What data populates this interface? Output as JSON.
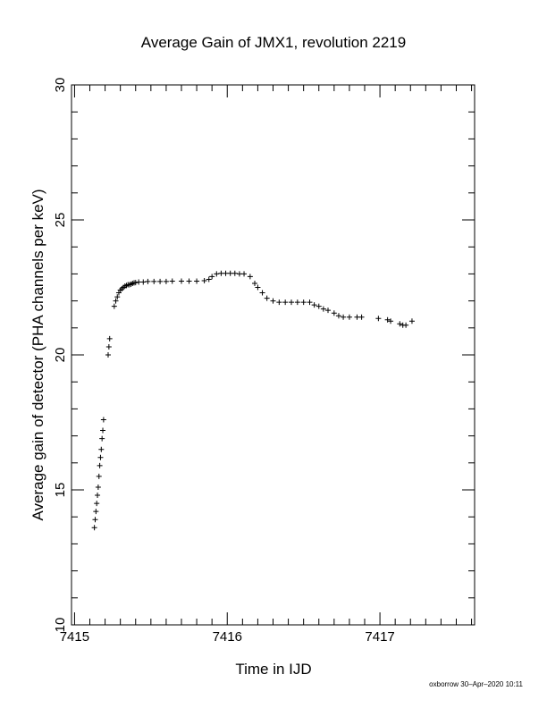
{
  "chart_data": {
    "type": "scatter",
    "title": "Average Gain of JMX1, revolution 2219",
    "xlabel": "Time in IJD",
    "ylabel": "Average gain of detector (PHA channels per keV)",
    "xlim": [
      7414.98,
      7417.62
    ],
    "ylim": [
      10,
      30
    ],
    "x_ticks": [
      7415,
      7416,
      7417
    ],
    "y_ticks": [
      10,
      15,
      20,
      25,
      30
    ],
    "x_tick_labels": [
      "7415",
      "7416",
      "7417"
    ],
    "y_tick_labels": [
      "10",
      "15",
      "20",
      "25",
      "30"
    ],
    "grid": false,
    "legend": "none",
    "marker": "plus",
    "marker_color": "#000000",
    "x": [
      7415.13,
      7415.135,
      7415.14,
      7415.145,
      7415.15,
      7415.155,
      7415.16,
      7415.165,
      7415.17,
      7415.175,
      7415.18,
      7415.185,
      7415.19,
      7415.22,
      7415.225,
      7415.23,
      7415.26,
      7415.27,
      7415.28,
      7415.29,
      7415.3,
      7415.31,
      7415.32,
      7415.33,
      7415.34,
      7415.35,
      7415.36,
      7415.37,
      7415.38,
      7415.39,
      7415.4,
      7415.42,
      7415.45,
      7415.48,
      7415.52,
      7415.56,
      7415.6,
      7415.64,
      7415.7,
      7415.75,
      7415.8,
      7415.85,
      7415.88,
      7415.9,
      7415.93,
      7415.96,
      7415.99,
      7416.02,
      7416.05,
      7416.08,
      7416.11,
      7416.15,
      7416.18,
      7416.2,
      7416.23,
      7416.26,
      7416.3,
      7416.34,
      7416.38,
      7416.42,
      7416.46,
      7416.5,
      7416.54,
      7416.57,
      7416.6,
      7416.63,
      7416.66,
      7416.7,
      7416.73,
      7416.76,
      7416.8,
      7416.85,
      7416.88,
      7416.99,
      7417.05,
      7417.07,
      7417.13,
      7417.15,
      7417.17,
      7417.21
    ],
    "y": [
      13.6,
      13.9,
      14.2,
      14.5,
      14.8,
      15.1,
      15.5,
      15.9,
      16.2,
      16.5,
      16.9,
      17.2,
      17.6,
      20.0,
      20.3,
      20.6,
      21.8,
      22.0,
      22.15,
      22.3,
      22.4,
      22.45,
      22.5,
      22.55,
      22.57,
      22.6,
      22.6,
      22.62,
      22.65,
      22.67,
      22.68,
      22.7,
      22.7,
      22.72,
      22.72,
      22.72,
      22.72,
      22.73,
      22.73,
      22.73,
      22.73,
      22.75,
      22.8,
      22.9,
      23.0,
      23.02,
      23.02,
      23.02,
      23.02,
      23.0,
      23.0,
      22.9,
      22.65,
      22.5,
      22.3,
      22.1,
      22.0,
      21.95,
      21.95,
      21.95,
      21.95,
      21.95,
      21.95,
      21.85,
      21.8,
      21.7,
      21.65,
      21.55,
      21.45,
      21.4,
      21.4,
      21.4,
      21.4,
      21.35,
      21.3,
      21.25,
      21.15,
      21.1,
      21.1,
      21.25
    ]
  },
  "credit": "oxborrow 30–Apr–2020 10:11"
}
